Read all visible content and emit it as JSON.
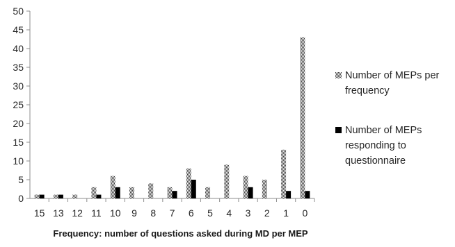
{
  "chart_data": {
    "type": "bar",
    "title": "",
    "xlabel": "Frequency: number of questions asked during MD per MEP",
    "ylabel": "",
    "ylim": [
      0,
      50
    ],
    "yticks": [
      "0",
      "5",
      "10",
      "15",
      "20",
      "25",
      "30",
      "35",
      "40",
      "45",
      "50"
    ],
    "grid": false,
    "legend_position": "right",
    "categories": [
      "15",
      "13",
      "12",
      "11",
      "10",
      "9",
      "8",
      "7",
      "6",
      "5",
      "4",
      "3",
      "2",
      "1",
      "0"
    ],
    "series": [
      {
        "name": "Number of MEPs per frequency",
        "name_lines": [
          "Number of MEPs per",
          "frequency"
        ],
        "pattern": "checkered",
        "color": "#404040",
        "values": [
          1,
          1,
          1,
          3,
          6,
          3,
          4,
          3,
          8,
          3,
          9,
          6,
          5,
          13,
          43
        ]
      },
      {
        "name": "Number of MEPs responding to questionnaire",
        "name_lines": [
          "Number of MEPs",
          "responding to",
          "questionnaire"
        ],
        "pattern": "solid",
        "color": "#000000",
        "values": [
          1,
          1,
          0,
          1,
          3,
          0,
          0,
          2,
          5,
          0,
          0,
          3,
          0,
          2,
          2
        ]
      }
    ]
  }
}
